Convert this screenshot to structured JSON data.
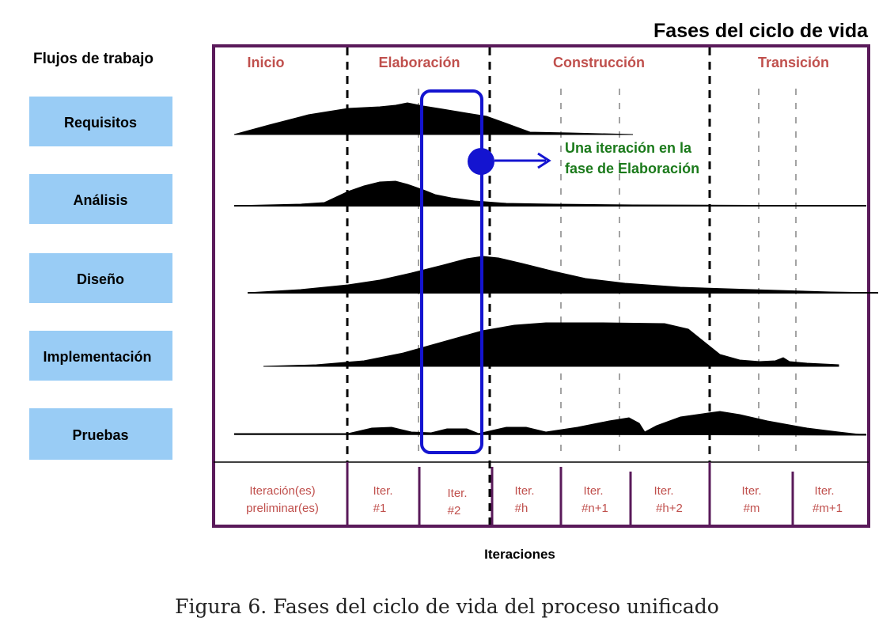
{
  "header": {
    "lifecycle_title": "Fases del ciclo de vida",
    "workflows_title": "Flujos de trabajo"
  },
  "workflows": [
    {
      "label": "Requisitos"
    },
    {
      "label": "Análisis"
    },
    {
      "label": "Diseño"
    },
    {
      "label": "Implementación"
    },
    {
      "label": "Pruebas"
    }
  ],
  "phases": [
    {
      "label": "Inicio"
    },
    {
      "label": "Elaboración"
    },
    {
      "label": "Construcción"
    },
    {
      "label": "Transición"
    }
  ],
  "iterations": [
    {
      "line1": "Iteración(es)",
      "line2": "preliminar(es)"
    },
    {
      "line1": "Iter.",
      "line2": "#1"
    },
    {
      "line1": "Iter.",
      "line2": "#2"
    },
    {
      "line1": "Iter.",
      "line2": "#h"
    },
    {
      "line1": "Iter.",
      "line2": "#n+1"
    },
    {
      "line1": "Iter.",
      "line2": "#h+2"
    },
    {
      "line1": "Iter.",
      "line2": "#m"
    },
    {
      "line1": "Iter.",
      "line2": "#m+1"
    }
  ],
  "annotation": {
    "line1": "Una iteración en la",
    "line2": "fase de Elaboración"
  },
  "axis_label": "Iteraciones",
  "caption": "Figura 6. Fases del ciclo de vida del proceso unificado",
  "colors": {
    "frame": "#5a1a5a",
    "phase_text": "#c0504d",
    "workflow_box": "#99ccf5",
    "highlight": "#1414d0",
    "annotation_text": "#1b7a1b",
    "curve_fill": "#000000"
  }
}
